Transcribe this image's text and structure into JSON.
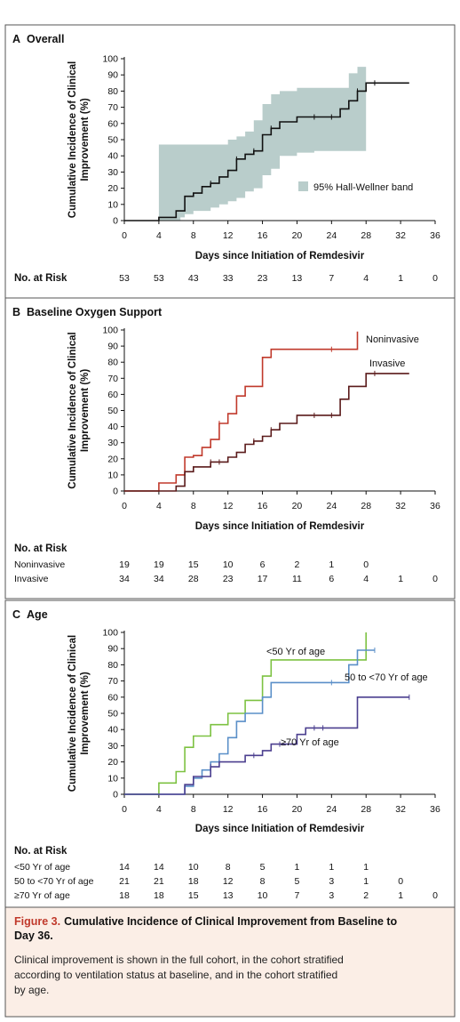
{
  "chart_data": [
    {
      "type": "line",
      "panel": "A",
      "title": "Overall",
      "xlabel": "Days since Initiation of Remdesivir",
      "ylabel": "Cumulative Incidence of Clinical Improvement (%)",
      "ylabel_lines": [
        "Cumulative Incidence of Clinical",
        "Improvement (%)"
      ],
      "xlim": [
        0,
        36
      ],
      "ylim": [
        0,
        100
      ],
      "xticks": [
        0,
        4,
        8,
        12,
        16,
        20,
        24,
        28,
        32,
        36
      ],
      "yticks": [
        0,
        10,
        20,
        30,
        40,
        50,
        60,
        70,
        80,
        90,
        100
      ],
      "legend": {
        "label": "95% Hall-Wellner band",
        "position": "bottom-right"
      },
      "band": {
        "x": [
          4,
          6,
          6.5,
          7,
          8,
          10,
          11,
          12,
          13,
          14,
          15,
          16,
          17,
          18,
          20,
          22,
          24,
          26,
          27,
          28
        ],
        "lower": [
          0,
          0,
          2,
          4,
          6,
          8,
          10,
          12,
          14,
          18,
          20,
          28,
          32,
          40,
          42,
          43,
          43,
          43,
          43,
          43
        ],
        "upper": [
          47,
          47,
          47,
          47,
          47,
          47,
          47,
          50,
          52,
          55,
          62,
          72,
          78,
          80,
          82,
          82,
          82,
          91,
          95,
          99
        ]
      },
      "series": [
        {
          "name": "Overall",
          "color": "#111111",
          "x": [
            0,
            4,
            6,
            7,
            8,
            9,
            10,
            11,
            12,
            13,
            14,
            15,
            16,
            17,
            18,
            20,
            25,
            26,
            27,
            28,
            33
          ],
          "y": [
            0,
            2,
            6,
            15,
            17,
            21,
            23,
            27,
            31,
            38,
            41,
            43,
            53,
            57,
            61,
            64,
            69,
            74,
            80,
            85,
            85
          ],
          "censored_x": [
            10,
            13,
            15,
            17,
            22,
            24,
            27,
            29
          ]
        }
      ],
      "risk_table": {
        "title": "No. at Risk",
        "x": [
          0,
          4,
          8,
          12,
          16,
          20,
          24,
          28,
          32,
          36
        ],
        "rows": [
          {
            "label": "",
            "values": [
              "53",
              "53",
              "43",
              "33",
              "23",
              "13",
              "7",
              "4",
              "1",
              "0"
            ]
          }
        ]
      }
    },
    {
      "type": "line",
      "panel": "B",
      "title": "Baseline Oxygen Support",
      "xlabel": "Days since Initiation of Remdesivir",
      "ylabel": "Cumulative Incidence of Clinical Improvement (%)",
      "ylabel_lines": [
        "Cumulative Incidence of Clinical",
        "Improvement (%)"
      ],
      "xlim": [
        0,
        36
      ],
      "ylim": [
        0,
        100
      ],
      "xticks": [
        0,
        4,
        8,
        12,
        16,
        20,
        24,
        28,
        32,
        36
      ],
      "yticks": [
        0,
        10,
        20,
        30,
        40,
        50,
        60,
        70,
        80,
        90,
        100
      ],
      "series": [
        {
          "name": "Noninvasive",
          "color": "#c0392b",
          "x": [
            0,
            4,
            6,
            7,
            8,
            9,
            10,
            11,
            12,
            13,
            14,
            16,
            17,
            24,
            27
          ],
          "y": [
            0,
            5,
            10,
            21,
            22,
            27,
            32,
            42,
            48,
            59,
            65,
            83,
            88,
            88,
            99
          ],
          "censored_x": [
            11,
            24
          ]
        },
        {
          "name": "Invasive",
          "color": "#5a1a1a",
          "x": [
            0,
            6,
            7,
            8,
            10,
            12,
            13,
            14,
            15,
            16,
            17,
            18,
            20,
            25,
            26,
            28,
            33
          ],
          "y": [
            0,
            3,
            12,
            15,
            18,
            21,
            24,
            29,
            31,
            34,
            38,
            42,
            47,
            57,
            65,
            73,
            73
          ],
          "censored_x": [
            10,
            11,
            15,
            17,
            22,
            24,
            29
          ]
        }
      ],
      "risk_table": {
        "title": "No. at Risk",
        "x": [
          0,
          4,
          8,
          12,
          16,
          20,
          24,
          28,
          32,
          36
        ],
        "rows": [
          {
            "label": "Noninvasive",
            "values": [
              "19",
              "19",
              "15",
              "10",
              "6",
              "2",
              "1",
              "0",
              "",
              ""
            ]
          },
          {
            "label": "Invasive",
            "values": [
              "34",
              "34",
              "28",
              "23",
              "17",
              "11",
              "6",
              "4",
              "1",
              "0"
            ]
          }
        ]
      }
    },
    {
      "type": "line",
      "panel": "C",
      "title": "Age",
      "xlabel": "Days since Initiation of Remdesivir",
      "ylabel": "Cumulative Incidence of Clinical Improvement (%)",
      "ylabel_lines": [
        "Cumulative Incidence of Clinical",
        "Improvement (%)"
      ],
      "xlim": [
        0,
        36
      ],
      "ylim": [
        0,
        100
      ],
      "xticks": [
        0,
        4,
        8,
        12,
        16,
        20,
        24,
        28,
        32,
        36
      ],
      "yticks": [
        0,
        10,
        20,
        30,
        40,
        50,
        60,
        70,
        80,
        90,
        100
      ],
      "series": [
        {
          "name": "<50 Yr of age",
          "color": "#7dc242",
          "x": [
            0,
            4,
            6,
            7,
            8,
            10,
            12,
            14,
            16,
            17,
            27,
            28
          ],
          "y": [
            0,
            7,
            14,
            29,
            36,
            43,
            50,
            58,
            73,
            83,
            83,
            100
          ],
          "censored_x": []
        },
        {
          "name": "50 to <70 Yr of age",
          "color": "#5a8fc8",
          "x": [
            0,
            7,
            8,
            9,
            10,
            11,
            12,
            13,
            14,
            16,
            17,
            18,
            26,
            27,
            29
          ],
          "y": [
            0,
            5,
            10,
            15,
            20,
            25,
            35,
            45,
            50,
            60,
            69,
            69,
            80,
            89,
            89
          ],
          "censored_x": [
            24,
            29
          ]
        },
        {
          "name": "≥70 Yr of age",
          "color": "#4b3f8f",
          "x": [
            0,
            7,
            8,
            10,
            11,
            14,
            16,
            17,
            20,
            21,
            27,
            33
          ],
          "y": [
            0,
            6,
            11,
            17,
            20,
            24,
            27,
            31,
            37,
            41,
            60,
            60
          ],
          "censored_x": [
            10,
            15,
            18,
            22,
            23,
            33
          ]
        }
      ],
      "risk_table": {
        "title": "No. at Risk",
        "x": [
          0,
          4,
          8,
          12,
          16,
          20,
          24,
          28,
          32,
          36
        ],
        "rows": [
          {
            "label": "<50 Yr of age",
            "values": [
              "14",
              "14",
              "10",
              "8",
              "5",
              "1",
              "1",
              "1",
              "",
              ""
            ]
          },
          {
            "label": "50 to <70 Yr of age",
            "values": [
              "21",
              "21",
              "18",
              "12",
              "8",
              "5",
              "3",
              "1",
              "0",
              ""
            ]
          },
          {
            "label": "≥70 Yr of age",
            "values": [
              "18",
              "18",
              "15",
              "13",
              "10",
              "7",
              "3",
              "2",
              "1",
              "0"
            ]
          }
        ]
      }
    }
  ],
  "caption": {
    "figure_number": "Figure 3.",
    "title": "Cumulative Incidence of Clinical Improvement from Baseline to Day 36.",
    "body": "Clinical improvement is shown in the full cohort, in the cohort stratified according to ventilation status at baseline, and in the cohort stratified by age."
  },
  "colors": {
    "band": "#b9cdcb",
    "caption_background": "#fbeee6",
    "figure_number": "#c0392b"
  }
}
